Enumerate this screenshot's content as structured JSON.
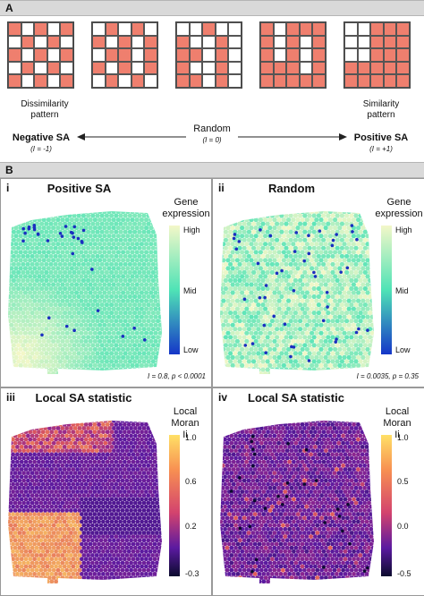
{
  "sectionA": {
    "label": "A",
    "patterns": [
      [
        [
          1,
          0,
          1,
          0,
          1
        ],
        [
          0,
          1,
          0,
          1,
          0
        ],
        [
          1,
          0,
          1,
          0,
          1
        ],
        [
          0,
          1,
          0,
          1,
          0
        ],
        [
          1,
          0,
          1,
          0,
          1
        ]
      ],
      [
        [
          0,
          1,
          0,
          1,
          0
        ],
        [
          1,
          0,
          1,
          0,
          1
        ],
        [
          0,
          1,
          1,
          0,
          1
        ],
        [
          1,
          0,
          1,
          0,
          1
        ],
        [
          0,
          1,
          0,
          1,
          0
        ]
      ],
      [
        [
          0,
          0,
          1,
          0,
          0
        ],
        [
          1,
          0,
          0,
          1,
          0
        ],
        [
          1,
          1,
          0,
          1,
          0
        ],
        [
          1,
          0,
          0,
          1,
          0
        ],
        [
          1,
          1,
          0,
          1,
          0
        ]
      ],
      [
        [
          1,
          0,
          1,
          1,
          1
        ],
        [
          1,
          0,
          1,
          0,
          1
        ],
        [
          1,
          0,
          1,
          0,
          1
        ],
        [
          1,
          1,
          1,
          0,
          1
        ],
        [
          1,
          1,
          1,
          1,
          1
        ]
      ],
      [
        [
          0,
          0,
          1,
          1,
          1
        ],
        [
          0,
          0,
          1,
          1,
          1
        ],
        [
          0,
          0,
          1,
          1,
          1
        ],
        [
          1,
          1,
          1,
          1,
          1
        ],
        [
          1,
          1,
          1,
          1,
          1
        ]
      ]
    ],
    "dissimilarity_label": "Dissimilarity\npattern",
    "similarity_label": "Similarity\npattern",
    "random_label": "Random",
    "random_eq": "(I = 0)",
    "negative_label": "Negative SA",
    "negative_eq": "(I = -1)",
    "positive_label": "Positive SA",
    "positive_eq": "(I = +1)",
    "colors": {
      "filled": "#ef7f6e",
      "empty": "#ffffff"
    }
  },
  "sectionB": {
    "label": "B",
    "panels": [
      {
        "num": "i",
        "title": "Positive SA",
        "cbar_title": "Gene\nexpression",
        "ticks": [
          "High",
          "Mid",
          "Low"
        ],
        "stat": "I = 0.8, p < 0.0001"
      },
      {
        "num": "ii",
        "title": "Random",
        "cbar_title": "Gene\nexpression",
        "ticks": [
          "High",
          "Mid",
          "Low"
        ],
        "stat": "I = 0.0035, p = 0.35"
      },
      {
        "num": "iii",
        "title": "Local SA statistic",
        "cbar_title": "Local Moran\nIi",
        "ticks": [
          "1.0",
          "0.6",
          "0.2",
          "-0.3"
        ]
      },
      {
        "num": "iv",
        "title": "Local SA statistic",
        "cbar_title": "Local Moran\nIi",
        "ticks": [
          "1.0",
          "0.5",
          "0.0",
          "-0.5"
        ]
      }
    ],
    "colors": {
      "expr_high": "#f3f7c8",
      "expr_mid": "#4fe3b6",
      "expr_low": "#1536c8",
      "moran_high": "#ffe066",
      "moran_mid": "#d3436e",
      "moran_low": "#0b0b2e"
    }
  }
}
